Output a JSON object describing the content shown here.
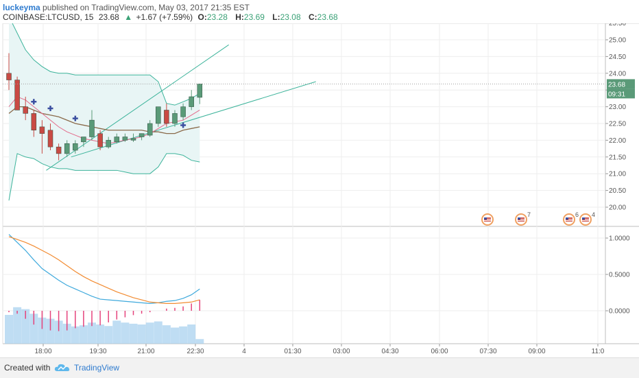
{
  "header": {
    "author": "luckeyma",
    "published": "published on TradingView.com, May 03, 2017 21:35 EST",
    "symbol": "COINBASE:LTCUSD, 15",
    "last": "23.68",
    "change_arrow": "▲",
    "change": "+1.67 (+7.59%)",
    "o_label": "O:",
    "o_value": "23.28",
    "h_label": "H:",
    "h_value": "23.69",
    "l_label": "L:",
    "l_value": "23.08",
    "c_label": "C:",
    "c_value": "23.68"
  },
  "footer": {
    "created_with": "Created with",
    "brand": "TradingView"
  },
  "colors": {
    "up": "#5a9a78",
    "down": "#c94a44",
    "grid": "#eeeeee",
    "channel": "#3bb39a",
    "band_fill": "#e8f5f5",
    "macd": "#3ea9dc",
    "signal": "#f28b31",
    "hist": "#e5427b",
    "volume": "#a9d2ef",
    "last_price_tag": "#5a9a78"
  },
  "chart_data": [
    {
      "type": "candlestick",
      "symbol": "COINBASE:LTCUSD",
      "interval": "15",
      "y_ticks": [
        "25.50",
        "25.00",
        "24.50",
        "24.00",
        "23.50",
        "23.00",
        "22.50",
        "22.00",
        "21.50",
        "21.00",
        "20.50",
        "20.00"
      ],
      "ylim": [
        19.9,
        25.8
      ],
      "x_ticks": [
        "18:00",
        "19:30",
        "21:00",
        "22:30",
        "4",
        "01:30",
        "03:00",
        "04:30",
        "06:00",
        "07:30",
        "09:00",
        "11:0"
      ],
      "last_price_label": "23.68",
      "countdown_label": "09:31",
      "candles": [
        {
          "o": 24.0,
          "h": 24.6,
          "l": 23.5,
          "c": 23.8
        },
        {
          "o": 23.8,
          "h": 23.9,
          "l": 22.9,
          "c": 22.9
        },
        {
          "o": 23.0,
          "h": 23.3,
          "l": 22.6,
          "c": 22.8
        },
        {
          "o": 22.8,
          "h": 22.9,
          "l": 22.1,
          "c": 22.3
        },
        {
          "o": 22.4,
          "h": 22.6,
          "l": 21.6,
          "c": 22.2
        },
        {
          "o": 22.3,
          "h": 22.5,
          "l": 21.7,
          "c": 21.8
        },
        {
          "o": 21.8,
          "h": 21.9,
          "l": 21.4,
          "c": 21.6
        },
        {
          "o": 21.6,
          "h": 22.0,
          "l": 21.5,
          "c": 21.9
        },
        {
          "o": 21.7,
          "h": 22.0,
          "l": 21.6,
          "c": 21.9
        },
        {
          "o": 21.95,
          "h": 22.1,
          "l": 21.8,
          "c": 22.1
        },
        {
          "o": 22.1,
          "h": 22.9,
          "l": 22.0,
          "c": 22.6
        },
        {
          "o": 22.2,
          "h": 22.3,
          "l": 21.7,
          "c": 21.8
        },
        {
          "o": 21.8,
          "h": 22.1,
          "l": 21.75,
          "c": 22.0
        },
        {
          "o": 21.95,
          "h": 22.2,
          "l": 21.9,
          "c": 22.1
        },
        {
          "o": 22.0,
          "h": 22.2,
          "l": 21.95,
          "c": 22.1
        },
        {
          "o": 22.0,
          "h": 22.2,
          "l": 21.95,
          "c": 22.05
        },
        {
          "o": 22.1,
          "h": 22.2,
          "l": 22.0,
          "c": 22.2
        },
        {
          "o": 22.15,
          "h": 22.6,
          "l": 22.1,
          "c": 22.5
        },
        {
          "o": 22.5,
          "h": 23.0,
          "l": 22.4,
          "c": 23.0
        },
        {
          "o": 22.9,
          "h": 23.1,
          "l": 22.4,
          "c": 22.5
        },
        {
          "o": 22.5,
          "h": 22.9,
          "l": 22.4,
          "c": 22.8
        },
        {
          "o": 22.7,
          "h": 23.1,
          "l": 22.6,
          "c": 23.0
        },
        {
          "o": 23.0,
          "h": 23.5,
          "l": 22.9,
          "c": 23.3
        },
        {
          "o": 23.28,
          "h": 23.69,
          "l": 23.08,
          "c": 23.68
        }
      ],
      "bollinger_upper": [
        25.7,
        25.2,
        24.7,
        24.4,
        24.2,
        24.05,
        24.0,
        24.0,
        23.95,
        23.95,
        23.95,
        23.95,
        23.95,
        23.95,
        23.95,
        23.95,
        23.95,
        23.95,
        23.75,
        23.1,
        23.05,
        23.15,
        23.25,
        23.4
      ],
      "bollinger_lower": [
        20.2,
        21.6,
        21.5,
        21.45,
        21.3,
        21.2,
        21.15,
        21.15,
        21.1,
        21.1,
        21.1,
        21.1,
        21.1,
        21.1,
        21.05,
        21.0,
        21.0,
        21.0,
        21.2,
        21.6,
        21.6,
        21.55,
        21.4,
        21.35
      ],
      "ma_fast": [
        23.0,
        23.3,
        23.2,
        23.0,
        22.8,
        22.6,
        22.4,
        22.25,
        22.15,
        22.05,
        22.0,
        21.95,
        21.9,
        21.95,
        22.0,
        22.05,
        22.1,
        22.2,
        22.35,
        22.5,
        22.55,
        22.6,
        22.75,
        22.9
      ],
      "ma_slow": [
        22.8,
        23.0,
        23.0,
        22.9,
        22.8,
        22.75,
        22.7,
        22.6,
        22.5,
        22.45,
        22.4,
        22.35,
        22.3,
        22.3,
        22.3,
        22.3,
        22.3,
        22.25,
        22.25,
        22.2,
        22.2,
        22.3,
        22.35,
        22.4
      ],
      "pivot_markers": [
        {
          "i": 3,
          "v": 23.15
        },
        {
          "i": 5,
          "v": 22.95
        },
        {
          "i": 8,
          "v": 22.65
        },
        {
          "i": 21,
          "v": 22.45
        }
      ],
      "trend_lines": [
        {
          "from": {
            "i": -0.5,
            "v": 25.55
          },
          "to": {
            "i": 31.5,
            "v": 25.55
          }
        },
        {
          "from": {
            "i": 4.5,
            "v": 21.1
          },
          "to": {
            "i": 26.5,
            "v": 24.85
          }
        },
        {
          "from": {
            "i": 7.5,
            "v": 21.5
          },
          "to": {
            "i": 37,
            "v": 23.75
          }
        }
      ],
      "event_markers": [
        {
          "label": ""
        },
        {
          "label": "7"
        },
        {
          "label": "6"
        },
        {
          "label": "4"
        }
      ]
    },
    {
      "type": "line",
      "panel": "oscillator",
      "y_ticks": [
        "1.0000",
        "0.5000",
        "0.0000"
      ],
      "ylim": [
        -0.42,
        1.08
      ],
      "series": [
        {
          "values": [
            1.05,
            0.94,
            0.83,
            0.7,
            0.58,
            0.5,
            0.42,
            0.35,
            0.3,
            0.25,
            0.2,
            0.16,
            0.15,
            0.14,
            0.13,
            0.12,
            0.11,
            0.1,
            0.11,
            0.13,
            0.14,
            0.17,
            0.22,
            0.3
          ]
        },
        {
          "values": [
            1.02,
            0.98,
            0.94,
            0.89,
            0.83,
            0.77,
            0.7,
            0.62,
            0.54,
            0.47,
            0.41,
            0.36,
            0.31,
            0.26,
            0.22,
            0.18,
            0.15,
            0.12,
            0.11,
            0.1,
            0.1,
            0.11,
            0.12,
            0.15
          ]
        }
      ],
      "histogram": [
        -0.02,
        -0.04,
        -0.11,
        -0.19,
        -0.25,
        -0.27,
        -0.28,
        -0.27,
        -0.24,
        -0.22,
        -0.21,
        -0.2,
        -0.16,
        -0.12,
        -0.09,
        -0.06,
        -0.04,
        -0.02,
        0.0,
        0.03,
        0.04,
        0.06,
        0.1,
        0.15
      ],
      "volume": [
        0.75,
        0.95,
        0.9,
        0.78,
        0.68,
        0.65,
        0.6,
        0.52,
        0.45,
        0.48,
        0.55,
        0.5,
        0.46,
        0.6,
        0.55,
        0.52,
        0.5,
        0.55,
        0.58,
        0.48,
        0.42,
        0.45,
        0.5,
        0.12
      ]
    }
  ]
}
